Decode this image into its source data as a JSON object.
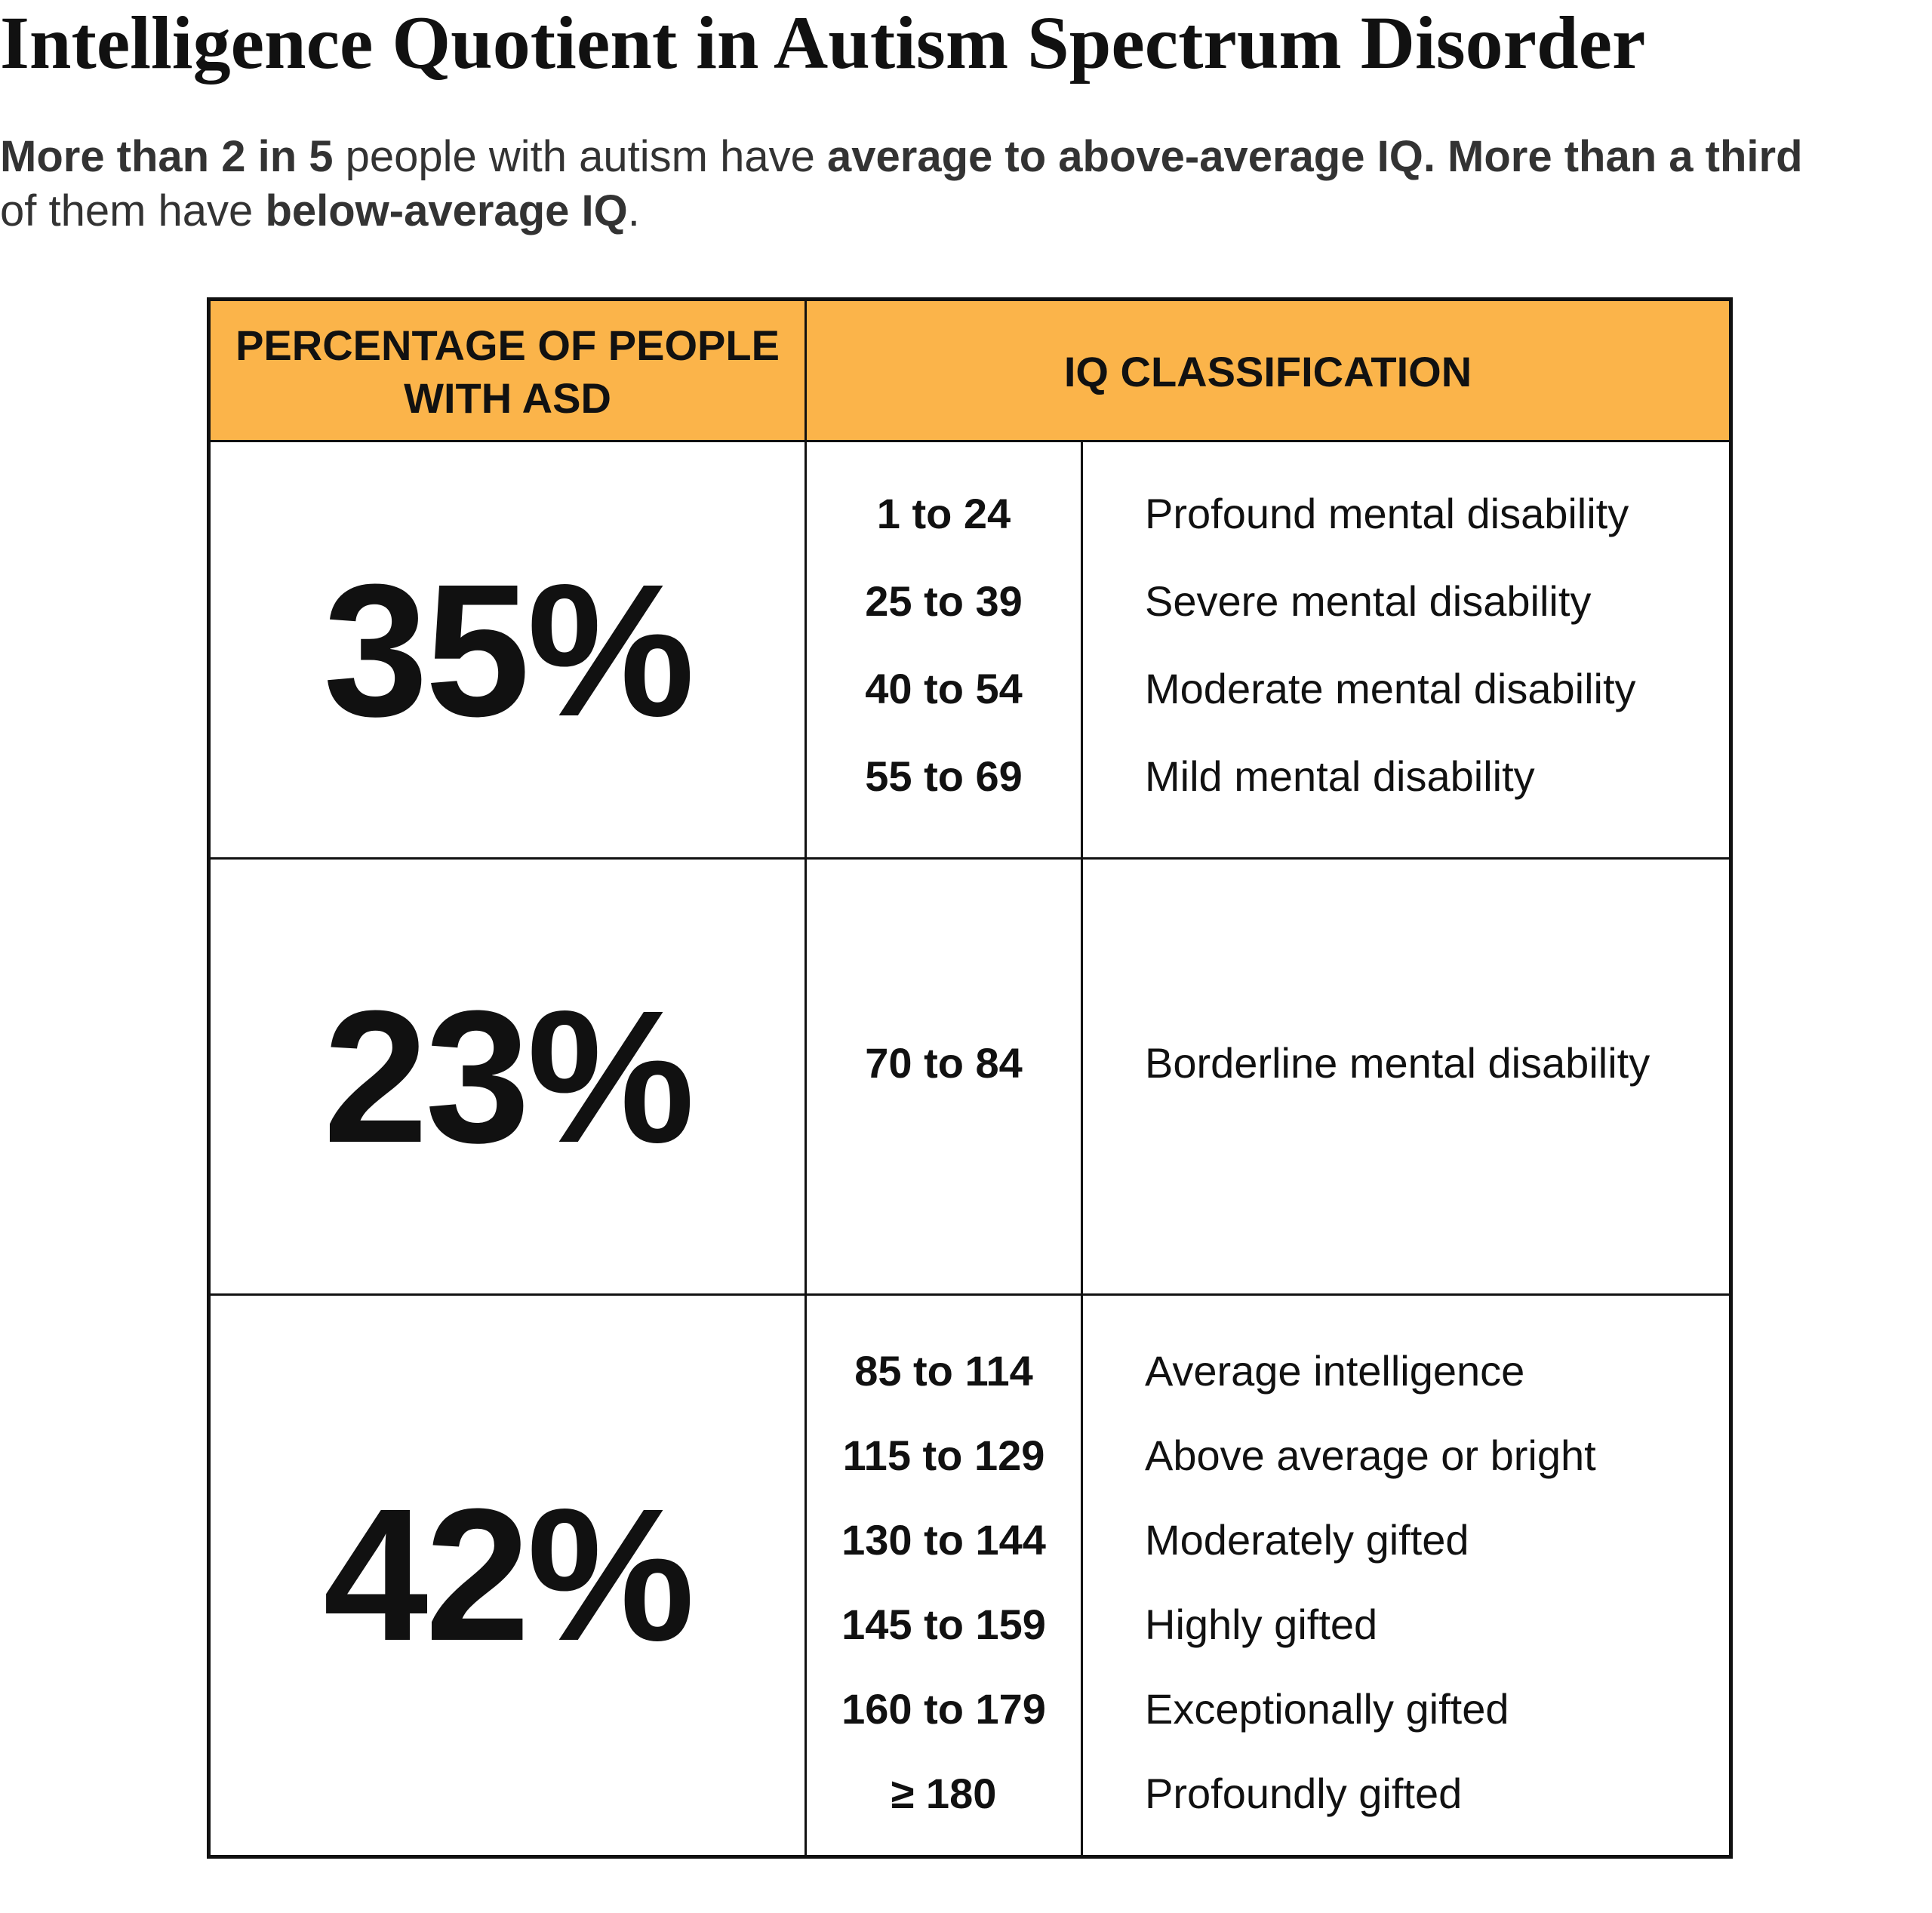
{
  "title": "Intelligence Quotient in Autism Spectrum Disorder",
  "subtitle": {
    "p1_bold": "More than 2 in 5",
    "p2": " people with autism have ",
    "p3_bold": "average to above-average IQ. More than a third",
    "p4": " of them have ",
    "p5_bold": "below-average IQ",
    "p6": "."
  },
  "table": {
    "header_color": "#FBB44A",
    "headers": [
      "PERCENTAGE OF PEOPLE WITH ASD",
      "IQ CLASSIFICATION"
    ],
    "groups": [
      {
        "percent": "35%",
        "rows": [
          {
            "range": "1 to 24",
            "label": "Profound mental disability"
          },
          {
            "range": "25 to 39",
            "label": "Severe mental disability"
          },
          {
            "range": "40 to 54",
            "label": "Moderate mental disability"
          },
          {
            "range": "55 to 69",
            "label": "Mild mental disability"
          }
        ]
      },
      {
        "percent": "23%",
        "rows": [
          {
            "range": "70 to 84",
            "label": "Borderline mental disability"
          }
        ]
      },
      {
        "percent": "42%",
        "rows": [
          {
            "range": "85 to 114",
            "label": "Average intelligence"
          },
          {
            "range": "115 to 129",
            "label": "Above average or bright"
          },
          {
            "range": "130 to 144",
            "label": "Moderately gifted"
          },
          {
            "range": "145 to 159",
            "label": "Highly gifted"
          },
          {
            "range": "160 to 179",
            "label": "Exceptionally gifted"
          },
          {
            "range": "≥ 180",
            "label": "Profoundly gifted"
          }
        ]
      }
    ]
  }
}
